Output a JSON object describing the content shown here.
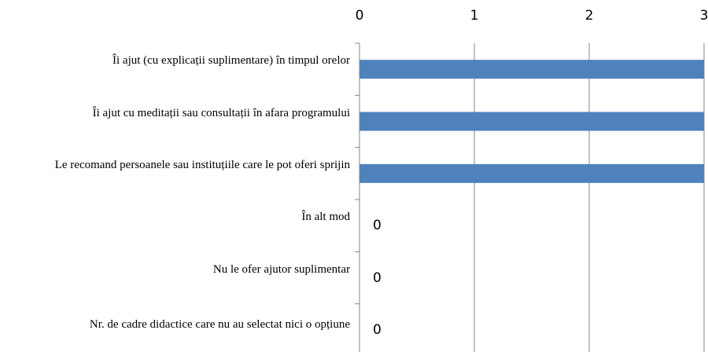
{
  "chart_data": {
    "type": "bar",
    "orientation": "horizontal",
    "categories": [
      "Îi ajut (cu explicații suplimentare) în timpul orelor",
      "Îi ajut cu meditații sau consultații în afara programului",
      "Le recomand persoanele sau instituțiile care le pot oferi sprijin",
      "În alt mod",
      "Nu le ofer ajutor suplimentar",
      "Nr. de cadre didactice care nu au selectat nici o opțiune"
    ],
    "values": [
      3,
      3,
      3,
      0,
      0,
      0
    ],
    "color": "#4f81bd",
    "xlim": [
      0,
      3
    ],
    "xticks": [
      0,
      1,
      2,
      3
    ],
    "grid": true
  }
}
